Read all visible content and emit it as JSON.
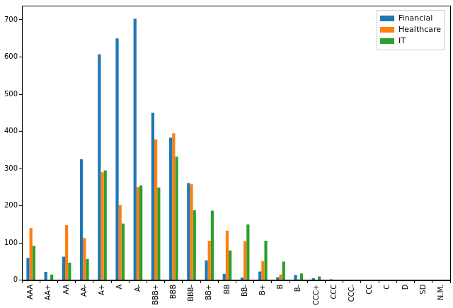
{
  "chart_data": {
    "type": "bar",
    "categories": [
      "AAA",
      "AA+",
      "AA",
      "AA-",
      "A+",
      "A",
      "A-",
      "BBB+",
      "BBB",
      "BBB-",
      "BB+",
      "BB",
      "BB-",
      "B+",
      "B",
      "B-",
      "CCC+",
      "CCC",
      "CCC-",
      "CC",
      "C",
      "D",
      "SD",
      "N.M."
    ],
    "series": [
      {
        "name": "Financial",
        "color": "#1f77b4",
        "values": [
          60,
          22,
          63,
          325,
          607,
          650,
          703,
          450,
          383,
          261,
          53,
          17,
          7,
          23,
          8,
          14,
          5,
          2,
          0,
          1,
          0,
          0,
          0,
          0
        ]
      },
      {
        "name": "Healthcare",
        "color": "#ff7f0e",
        "values": [
          140,
          0,
          148,
          113,
          290,
          202,
          250,
          378,
          395,
          258,
          106,
          133,
          105,
          51,
          15,
          2,
          1,
          0,
          0,
          0,
          0,
          0,
          0,
          0
        ]
      },
      {
        "name": "IT",
        "color": "#2ca02c",
        "values": [
          92,
          15,
          47,
          57,
          295,
          152,
          255,
          249,
          332,
          188,
          187,
          80,
          150,
          106,
          50,
          18,
          10,
          0,
          0,
          0,
          0,
          0,
          0,
          0
        ]
      }
    ],
    "ylim": [
      0,
      738
    ],
    "yticks": [
      0,
      100,
      200,
      300,
      400,
      500,
      600,
      700
    ],
    "grid": false,
    "legend": "upper right"
  }
}
